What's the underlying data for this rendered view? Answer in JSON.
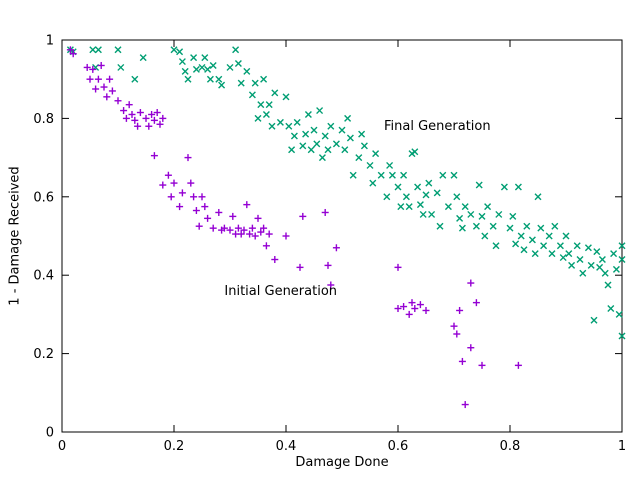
{
  "chart_data": {
    "type": "scatter",
    "title": "",
    "xlabel": "Damage Done",
    "ylabel": "1 - Damage Received",
    "xlim": [
      0,
      1
    ],
    "ylim": [
      0,
      1
    ],
    "xticks": [
      0,
      0.2,
      0.4,
      0.6,
      0.8,
      1
    ],
    "yticks": [
      0,
      0.2,
      0.4,
      0.6,
      0.8,
      1
    ],
    "grid": false,
    "legend_position": "inline-annotations",
    "series": [
      {
        "name": "Final Generation",
        "marker": "x",
        "color": "#009e73",
        "label_pos": {
          "x": 0.575,
          "y": 0.78
        },
        "points": [
          [
            0.015,
            0.975
          ],
          [
            0.02,
            0.97
          ],
          [
            0.055,
            0.975
          ],
          [
            0.06,
            0.93
          ],
          [
            0.065,
            0.975
          ],
          [
            0.1,
            0.975
          ],
          [
            0.105,
            0.93
          ],
          [
            0.13,
            0.9
          ],
          [
            0.145,
            0.955
          ],
          [
            0.2,
            0.975
          ],
          [
            0.21,
            0.97
          ],
          [
            0.215,
            0.945
          ],
          [
            0.22,
            0.92
          ],
          [
            0.225,
            0.9
          ],
          [
            0.235,
            0.955
          ],
          [
            0.24,
            0.925
          ],
          [
            0.25,
            0.93
          ],
          [
            0.255,
            0.955
          ],
          [
            0.26,
            0.925
          ],
          [
            0.265,
            0.9
          ],
          [
            0.27,
            0.935
          ],
          [
            0.28,
            0.9
          ],
          [
            0.285,
            0.885
          ],
          [
            0.3,
            0.93
          ],
          [
            0.31,
            0.975
          ],
          [
            0.315,
            0.94
          ],
          [
            0.32,
            0.89
          ],
          [
            0.33,
            0.92
          ],
          [
            0.34,
            0.86
          ],
          [
            0.345,
            0.89
          ],
          [
            0.35,
            0.8
          ],
          [
            0.355,
            0.835
          ],
          [
            0.36,
            0.9
          ],
          [
            0.365,
            0.81
          ],
          [
            0.37,
            0.835
          ],
          [
            0.375,
            0.78
          ],
          [
            0.38,
            0.865
          ],
          [
            0.39,
            0.79
          ],
          [
            0.4,
            0.855
          ],
          [
            0.405,
            0.78
          ],
          [
            0.41,
            0.72
          ],
          [
            0.415,
            0.755
          ],
          [
            0.42,
            0.79
          ],
          [
            0.43,
            0.73
          ],
          [
            0.435,
            0.76
          ],
          [
            0.44,
            0.81
          ],
          [
            0.445,
            0.72
          ],
          [
            0.45,
            0.77
          ],
          [
            0.455,
            0.735
          ],
          [
            0.46,
            0.82
          ],
          [
            0.465,
            0.7
          ],
          [
            0.47,
            0.755
          ],
          [
            0.475,
            0.72
          ],
          [
            0.48,
            0.78
          ],
          [
            0.49,
            0.735
          ],
          [
            0.5,
            0.77
          ],
          [
            0.505,
            0.72
          ],
          [
            0.51,
            0.8
          ],
          [
            0.515,
            0.75
          ],
          [
            0.52,
            0.655
          ],
          [
            0.53,
            0.7
          ],
          [
            0.535,
            0.76
          ],
          [
            0.54,
            0.73
          ],
          [
            0.55,
            0.68
          ],
          [
            0.555,
            0.635
          ],
          [
            0.56,
            0.71
          ],
          [
            0.57,
            0.655
          ],
          [
            0.58,
            0.6
          ],
          [
            0.585,
            0.68
          ],
          [
            0.59,
            0.655
          ],
          [
            0.6,
            0.625
          ],
          [
            0.605,
            0.575
          ],
          [
            0.61,
            0.655
          ],
          [
            0.615,
            0.6
          ],
          [
            0.62,
            0.575
          ],
          [
            0.625,
            0.71
          ],
          [
            0.63,
            0.715
          ],
          [
            0.635,
            0.625
          ],
          [
            0.64,
            0.58
          ],
          [
            0.645,
            0.555
          ],
          [
            0.65,
            0.605
          ],
          [
            0.655,
            0.635
          ],
          [
            0.66,
            0.555
          ],
          [
            0.67,
            0.61
          ],
          [
            0.675,
            0.525
          ],
          [
            0.68,
            0.655
          ],
          [
            0.69,
            0.575
          ],
          [
            0.7,
            0.655
          ],
          [
            0.705,
            0.6
          ],
          [
            0.71,
            0.545
          ],
          [
            0.715,
            0.52
          ],
          [
            0.72,
            0.575
          ],
          [
            0.73,
            0.555
          ],
          [
            0.74,
            0.525
          ],
          [
            0.745,
            0.63
          ],
          [
            0.75,
            0.55
          ],
          [
            0.755,
            0.5
          ],
          [
            0.76,
            0.575
          ],
          [
            0.77,
            0.525
          ],
          [
            0.775,
            0.475
          ],
          [
            0.78,
            0.555
          ],
          [
            0.79,
            0.625
          ],
          [
            0.8,
            0.52
          ],
          [
            0.805,
            0.55
          ],
          [
            0.81,
            0.48
          ],
          [
            0.815,
            0.625
          ],
          [
            0.82,
            0.5
          ],
          [
            0.825,
            0.465
          ],
          [
            0.83,
            0.525
          ],
          [
            0.84,
            0.49
          ],
          [
            0.845,
            0.455
          ],
          [
            0.85,
            0.6
          ],
          [
            0.855,
            0.52
          ],
          [
            0.86,
            0.475
          ],
          [
            0.87,
            0.5
          ],
          [
            0.875,
            0.455
          ],
          [
            0.88,
            0.525
          ],
          [
            0.89,
            0.475
          ],
          [
            0.895,
            0.445
          ],
          [
            0.9,
            0.5
          ],
          [
            0.905,
            0.455
          ],
          [
            0.91,
            0.425
          ],
          [
            0.92,
            0.475
          ],
          [
            0.925,
            0.44
          ],
          [
            0.93,
            0.405
          ],
          [
            0.94,
            0.47
          ],
          [
            0.945,
            0.425
          ],
          [
            0.95,
            0.285
          ],
          [
            0.955,
            0.46
          ],
          [
            0.96,
            0.42
          ],
          [
            0.965,
            0.44
          ],
          [
            0.97,
            0.405
          ],
          [
            0.975,
            0.375
          ],
          [
            0.98,
            0.315
          ],
          [
            0.985,
            0.455
          ],
          [
            0.99,
            0.415
          ],
          [
            0.995,
            0.3
          ],
          [
            1.0,
            0.475
          ],
          [
            1.0,
            0.44
          ],
          [
            1.0,
            0.245
          ]
        ]
      },
      {
        "name": "Initial Generation",
        "marker": "+",
        "color": "#9400d3",
        "label_pos": {
          "x": 0.29,
          "y": 0.36
        },
        "points": [
          [
            0.015,
            0.975
          ],
          [
            0.02,
            0.965
          ],
          [
            0.045,
            0.93
          ],
          [
            0.05,
            0.9
          ],
          [
            0.055,
            0.925
          ],
          [
            0.06,
            0.875
          ],
          [
            0.065,
            0.9
          ],
          [
            0.07,
            0.935
          ],
          [
            0.075,
            0.88
          ],
          [
            0.08,
            0.855
          ],
          [
            0.085,
            0.9
          ],
          [
            0.09,
            0.87
          ],
          [
            0.1,
            0.845
          ],
          [
            0.11,
            0.82
          ],
          [
            0.115,
            0.8
          ],
          [
            0.12,
            0.835
          ],
          [
            0.125,
            0.81
          ],
          [
            0.13,
            0.795
          ],
          [
            0.135,
            0.78
          ],
          [
            0.14,
            0.815
          ],
          [
            0.15,
            0.8
          ],
          [
            0.155,
            0.78
          ],
          [
            0.16,
            0.81
          ],
          [
            0.165,
            0.795
          ],
          [
            0.17,
            0.815
          ],
          [
            0.175,
            0.785
          ],
          [
            0.18,
            0.8
          ],
          [
            0.165,
            0.705
          ],
          [
            0.18,
            0.63
          ],
          [
            0.19,
            0.655
          ],
          [
            0.195,
            0.6
          ],
          [
            0.2,
            0.635
          ],
          [
            0.21,
            0.575
          ],
          [
            0.215,
            0.61
          ],
          [
            0.225,
            0.7
          ],
          [
            0.23,
            0.635
          ],
          [
            0.235,
            0.6
          ],
          [
            0.24,
            0.565
          ],
          [
            0.245,
            0.525
          ],
          [
            0.25,
            0.6
          ],
          [
            0.255,
            0.575
          ],
          [
            0.26,
            0.545
          ],
          [
            0.27,
            0.52
          ],
          [
            0.28,
            0.56
          ],
          [
            0.285,
            0.515
          ],
          [
            0.29,
            0.52
          ],
          [
            0.3,
            0.515
          ],
          [
            0.305,
            0.55
          ],
          [
            0.31,
            0.505
          ],
          [
            0.315,
            0.52
          ],
          [
            0.32,
            0.505
          ],
          [
            0.325,
            0.515
          ],
          [
            0.33,
            0.58
          ],
          [
            0.335,
            0.505
          ],
          [
            0.34,
            0.52
          ],
          [
            0.345,
            0.5
          ],
          [
            0.35,
            0.545
          ],
          [
            0.355,
            0.51
          ],
          [
            0.36,
            0.52
          ],
          [
            0.365,
            0.475
          ],
          [
            0.37,
            0.505
          ],
          [
            0.38,
            0.44
          ],
          [
            0.4,
            0.5
          ],
          [
            0.425,
            0.42
          ],
          [
            0.43,
            0.55
          ],
          [
            0.47,
            0.56
          ],
          [
            0.475,
            0.425
          ],
          [
            0.48,
            0.375
          ],
          [
            0.49,
            0.47
          ],
          [
            0.6,
            0.42
          ],
          [
            0.6,
            0.315
          ],
          [
            0.61,
            0.32
          ],
          [
            0.62,
            0.3
          ],
          [
            0.625,
            0.33
          ],
          [
            0.63,
            0.315
          ],
          [
            0.64,
            0.325
          ],
          [
            0.65,
            0.31
          ],
          [
            0.7,
            0.27
          ],
          [
            0.705,
            0.25
          ],
          [
            0.71,
            0.31
          ],
          [
            0.715,
            0.18
          ],
          [
            0.72,
            0.07
          ],
          [
            0.73,
            0.38
          ],
          [
            0.73,
            0.215
          ],
          [
            0.74,
            0.33
          ],
          [
            0.75,
            0.17
          ],
          [
            0.815,
            0.17
          ]
        ]
      }
    ]
  }
}
